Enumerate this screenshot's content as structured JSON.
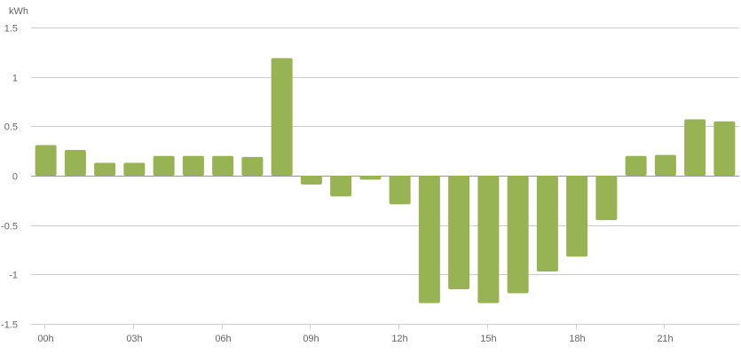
{
  "chart_data": {
    "type": "bar",
    "ylabel": "kWh",
    "ylim": [
      -1.5,
      1.5
    ],
    "yticks": [
      "1.5",
      "1",
      "0.5",
      "0",
      "-0.5",
      "-1",
      "-1.5"
    ],
    "ytick_values": [
      1.5,
      1,
      0.5,
      0,
      -0.5,
      -1,
      -1.5
    ],
    "grid": true,
    "xtick_labels": [
      "00h",
      "03h",
      "06h",
      "09h",
      "12h",
      "15h",
      "18h",
      "21h"
    ],
    "xtick_hours": [
      0,
      3,
      6,
      9,
      12,
      15,
      18,
      21
    ],
    "categories": [
      "0",
      "1",
      "2",
      "3",
      "4",
      "5",
      "6",
      "7",
      "8",
      "9",
      "10",
      "11",
      "12",
      "13",
      "14",
      "15",
      "16",
      "17",
      "18",
      "19",
      "20",
      "21",
      "22",
      "23"
    ],
    "values": [
      0.31,
      0.26,
      0.13,
      0.13,
      0.2,
      0.2,
      0.2,
      0.19,
      1.19,
      -0.09,
      -0.21,
      -0.04,
      -0.29,
      -1.29,
      -1.15,
      -1.29,
      -1.19,
      -0.97,
      -0.82,
      -0.45,
      0.2,
      0.21,
      0.57,
      0.55
    ],
    "bar_color": "#97b354"
  }
}
